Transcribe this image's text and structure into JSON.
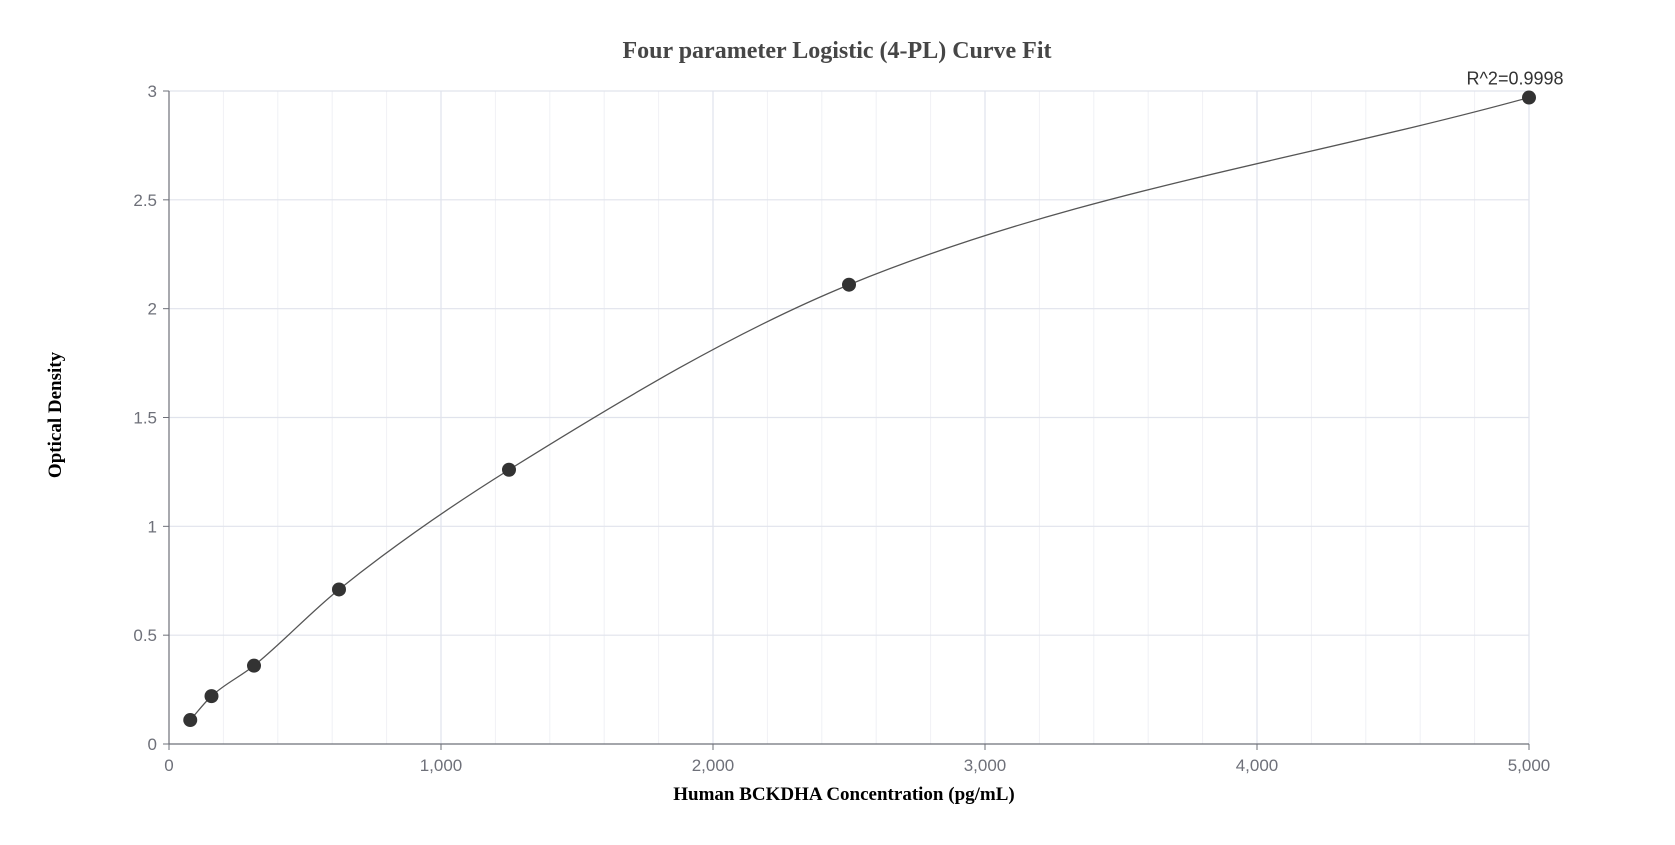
{
  "chart_data": {
    "type": "scatter",
    "title": "Four parameter Logistic (4-PL) Curve Fit",
    "xlabel": "Human BCKDHA Concentration (pg/mL)",
    "ylabel": "Optical Density",
    "xlim": [
      0,
      5000
    ],
    "ylim": [
      0,
      3
    ],
    "x_ticks": [
      0,
      1000,
      2000,
      3000,
      4000,
      5000
    ],
    "x_tick_labels": [
      "0",
      "1,000",
      "2,000",
      "3,000",
      "4,000",
      "5,000"
    ],
    "y_ticks": [
      0,
      0.5,
      1,
      1.5,
      2,
      2.5,
      3
    ],
    "y_tick_labels": [
      "0",
      "0.5",
      "1",
      "1.5",
      "2",
      "2.5",
      "3"
    ],
    "x_minor_step": 200,
    "grid": true,
    "points": [
      {
        "x": 78.125,
        "y": 0.11
      },
      {
        "x": 156.25,
        "y": 0.22
      },
      {
        "x": 312.5,
        "y": 0.36
      },
      {
        "x": 625,
        "y": 0.71
      },
      {
        "x": 1250,
        "y": 1.26
      },
      {
        "x": 2500,
        "y": 2.11
      },
      {
        "x": 5000,
        "y": 2.97
      }
    ],
    "fit_curve": {
      "type": "4-PL",
      "r_squared_label": "R^2=0.9998"
    },
    "colors": {
      "points": "#333333",
      "curve": "#555555",
      "grid": "#e0e3ec",
      "minor_grid": "#f0f1f5",
      "axis": "#6e7079"
    }
  }
}
